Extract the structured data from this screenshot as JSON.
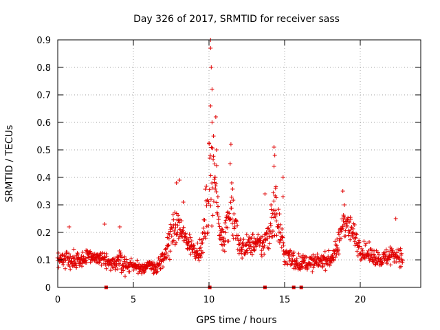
{
  "chart_data": {
    "type": "scatter",
    "title": "Day 326 of 2017, SRMTID for receiver sass",
    "xlabel": "GPS time / hours",
    "ylabel": "SRMTID / TECUs",
    "xlim": [
      0,
      24
    ],
    "ylim": [
      0,
      0.9
    ],
    "xticks": [
      0,
      5,
      10,
      15,
      20
    ],
    "xtick_labels": [
      "0",
      "5",
      "10",
      "15",
      "20"
    ],
    "yticks": [
      0,
      0.1,
      0.2,
      0.3,
      0.4,
      0.5,
      0.6,
      0.7,
      0.8,
      0.9
    ],
    "ytick_labels": [
      "0",
      "0.1",
      "0.2",
      "0.3",
      "0.4",
      "0.5",
      "0.6",
      "0.7",
      "0.8",
      "0.9"
    ],
    "grid": true,
    "marker": "plus",
    "color": "#e00000",
    "series": [
      {
        "name": "SRMTID",
        "profile": [
          [
            0.0,
            0.1,
            0.06
          ],
          [
            0.5,
            0.11,
            0.06
          ],
          [
            1.0,
            0.1,
            0.06
          ],
          [
            1.5,
            0.1,
            0.06
          ],
          [
            2.0,
            0.11,
            0.05
          ],
          [
            2.5,
            0.11,
            0.05
          ],
          [
            3.0,
            0.1,
            0.06
          ],
          [
            3.5,
            0.08,
            0.04
          ],
          [
            4.0,
            0.1,
            0.07
          ],
          [
            4.5,
            0.08,
            0.05
          ],
          [
            5.0,
            0.08,
            0.04
          ],
          [
            5.5,
            0.07,
            0.04
          ],
          [
            6.0,
            0.08,
            0.04
          ],
          [
            6.5,
            0.07,
            0.04
          ],
          [
            7.0,
            0.1,
            0.07
          ],
          [
            7.5,
            0.2,
            0.1
          ],
          [
            8.0,
            0.22,
            0.1
          ],
          [
            8.5,
            0.17,
            0.07
          ],
          [
            9.0,
            0.14,
            0.06
          ],
          [
            9.5,
            0.13,
            0.05
          ],
          [
            10.0,
            0.35,
            0.3
          ],
          [
            10.3,
            0.45,
            0.25
          ],
          [
            10.7,
            0.2,
            0.1
          ],
          [
            11.0,
            0.18,
            0.08
          ],
          [
            11.5,
            0.3,
            0.2
          ],
          [
            12.0,
            0.14,
            0.07
          ],
          [
            12.5,
            0.15,
            0.07
          ],
          [
            13.0,
            0.16,
            0.07
          ],
          [
            13.5,
            0.15,
            0.08
          ],
          [
            14.0,
            0.2,
            0.12
          ],
          [
            14.3,
            0.3,
            0.2
          ],
          [
            14.7,
            0.2,
            0.15
          ],
          [
            15.0,
            0.12,
            0.07
          ],
          [
            15.5,
            0.1,
            0.07
          ],
          [
            16.0,
            0.09,
            0.05
          ],
          [
            16.5,
            0.09,
            0.05
          ],
          [
            17.0,
            0.09,
            0.05
          ],
          [
            17.5,
            0.1,
            0.05
          ],
          [
            18.0,
            0.1,
            0.05
          ],
          [
            18.5,
            0.14,
            0.07
          ],
          [
            18.9,
            0.25,
            0.1
          ],
          [
            19.5,
            0.2,
            0.09
          ],
          [
            20.0,
            0.14,
            0.06
          ],
          [
            20.5,
            0.12,
            0.06
          ],
          [
            21.0,
            0.11,
            0.05
          ],
          [
            21.5,
            0.1,
            0.05
          ],
          [
            22.0,
            0.12,
            0.07
          ],
          [
            22.5,
            0.12,
            0.06
          ],
          [
            22.8,
            0.1,
            0.05
          ]
        ],
        "x_start": 0.0,
        "x_end": 22.8,
        "x_step": 0.02
      }
    ],
    "annotated_peaks": [
      [
        10.1,
        0.9
      ],
      [
        10.1,
        0.87
      ],
      [
        10.15,
        0.8
      ],
      [
        10.2,
        0.72
      ],
      [
        10.1,
        0.66
      ],
      [
        10.45,
        0.62
      ],
      [
        10.2,
        0.6
      ],
      [
        10.3,
        0.55
      ],
      [
        10.5,
        0.5
      ],
      [
        10.4,
        0.4
      ],
      [
        11.45,
        0.52
      ],
      [
        11.4,
        0.45
      ],
      [
        11.5,
        0.38
      ],
      [
        14.3,
        0.51
      ],
      [
        14.35,
        0.48
      ],
      [
        14.3,
        0.44
      ],
      [
        14.4,
        0.36
      ],
      [
        14.9,
        0.4
      ],
      [
        14.9,
        0.33
      ],
      [
        8.05,
        0.39
      ],
      [
        7.85,
        0.38
      ],
      [
        8.3,
        0.31
      ],
      [
        18.85,
        0.35
      ],
      [
        18.95,
        0.3
      ],
      [
        22.35,
        0.25
      ],
      [
        13.7,
        0.34
      ],
      [
        14.1,
        0.3
      ],
      [
        3.1,
        0.23
      ],
      [
        4.1,
        0.22
      ],
      [
        0.75,
        0.22
      ]
    ],
    "baseline_markers_x": [
      3.2,
      10.05,
      13.7,
      15.6,
      16.1
    ]
  }
}
